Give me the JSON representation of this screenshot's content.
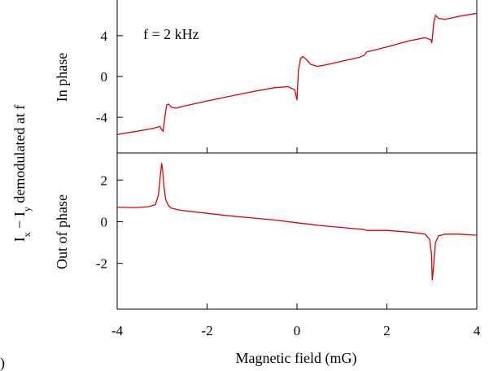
{
  "figure": {
    "shared_ylabel_main": "I",
    "shared_ylabel_sub_x": "x",
    "shared_ylabel_dash": " − I",
    "shared_ylabel_sub_y": "y",
    "shared_ylabel_rest": " demodulated at f",
    "xlabel": "Magnetic field (mG)",
    "corner_mark": ")",
    "line_color": "#e00000"
  },
  "chart_data": [
    {
      "type": "line",
      "panel": "top",
      "ylabel": "In phase",
      "annotation": "f = 2 kHz",
      "xlim": [
        -4,
        4
      ],
      "ylim": [
        -7.5,
        7.5
      ],
      "xticks": [
        -4,
        -2,
        0,
        2,
        4
      ],
      "yticks": [
        -4,
        0,
        4
      ],
      "ytick_labels": [
        "-4",
        "0",
        "4"
      ],
      "grid": false,
      "series": [
        {
          "x": [
            -4.0,
            -3.6,
            -3.2,
            -3.05,
            -2.98,
            -2.94,
            -2.9,
            -2.86,
            -2.8,
            -2.7,
            -2.5,
            -2.0,
            -1.5,
            -1.0,
            -0.5,
            -0.2,
            -0.05,
            0.0,
            0.03,
            0.08,
            0.13,
            0.2,
            0.3,
            0.45,
            0.6,
            1.0,
            1.4,
            1.5,
            1.55,
            2.0,
            2.5,
            2.85,
            2.98,
            3.0,
            3.04,
            3.08,
            3.15,
            3.3,
            3.6,
            4.0
          ],
          "y": [
            -5.7,
            -5.4,
            -5.1,
            -4.9,
            -5.4,
            -4.0,
            -2.8,
            -2.7,
            -3.0,
            -3.1,
            -2.9,
            -2.4,
            -1.95,
            -1.5,
            -1.1,
            -1.0,
            -1.3,
            -2.3,
            0.5,
            1.8,
            1.95,
            1.7,
            1.2,
            1.0,
            1.1,
            1.5,
            1.9,
            2.1,
            2.4,
            2.9,
            3.5,
            3.8,
            3.6,
            3.3,
            5.2,
            6.0,
            5.7,
            5.6,
            5.9,
            6.2
          ]
        }
      ]
    },
    {
      "type": "line",
      "panel": "bottom",
      "ylabel": "Out of phase",
      "xlabel": "Magnetic field (mG)",
      "xlim": [
        -4,
        4
      ],
      "ylim": [
        -4.2,
        3.3
      ],
      "xticks": [
        -4,
        -2,
        0,
        2,
        4
      ],
      "xtick_labels": [
        "-4",
        "-2",
        "0",
        "2",
        "4"
      ],
      "yticks": [
        -2,
        0,
        2
      ],
      "ytick_labels": [
        "-2",
        "0",
        "2"
      ],
      "grid": false,
      "series": [
        {
          "x": [
            -4.0,
            -3.6,
            -3.3,
            -3.15,
            -3.08,
            -3.04,
            -3.01,
            -2.99,
            -2.96,
            -2.92,
            -2.86,
            -2.8,
            -2.6,
            -2.0,
            -1.5,
            -1.0,
            -0.5,
            0.0,
            0.5,
            1.0,
            1.5,
            1.55,
            2.0,
            2.5,
            2.85,
            2.95,
            2.99,
            3.01,
            3.04,
            3.08,
            3.15,
            3.3,
            3.6,
            4.0
          ],
          "y": [
            0.7,
            0.68,
            0.72,
            0.82,
            1.3,
            2.2,
            2.8,
            2.5,
            1.7,
            1.05,
            0.78,
            0.65,
            0.55,
            0.4,
            0.28,
            0.18,
            0.08,
            -0.05,
            -0.18,
            -0.28,
            -0.38,
            -0.42,
            -0.42,
            -0.5,
            -0.6,
            -0.85,
            -1.5,
            -2.8,
            -2.1,
            -1.0,
            -0.68,
            -0.6,
            -0.6,
            -0.65
          ]
        }
      ]
    }
  ]
}
